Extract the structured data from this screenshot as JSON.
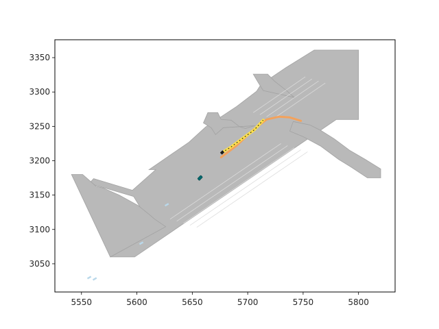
{
  "chart_data": {
    "type": "map",
    "title": "",
    "xlabel": "",
    "ylabel": "",
    "xlim": [
      5526,
      5833
    ],
    "ylim": [
      3009,
      3376
    ],
    "x_ticks": [
      5550,
      5600,
      5650,
      5700,
      5750,
      5800
    ],
    "y_ticks": [
      3050,
      3100,
      3150,
      3200,
      3250,
      3300,
      3350
    ],
    "x_tick_labels": [
      "5550",
      "5600",
      "5650",
      "5700",
      "5750",
      "5800"
    ],
    "y_tick_labels": [
      "3050",
      "3100",
      "3150",
      "3200",
      "3250",
      "3300",
      "3350"
    ],
    "grid": false,
    "colors": {
      "road": "#b9b9b9",
      "road_edge": "#a2a2a2",
      "lane_line": "#dcdcdc",
      "ego_path": "#ffe14a",
      "planned_path": "#f3a25c",
      "agent_vehicle": "#00696e",
      "pedestrian": "#b9d8ea"
    },
    "road_network": {
      "main_road": [
        [
          5576,
          3060
        ],
        [
          5598,
          3060
        ],
        [
          5780,
          3260
        ],
        [
          5800,
          3260
        ],
        [
          5800,
          3361
        ],
        [
          5760,
          3361
        ],
        [
          5734,
          3335
        ],
        [
          5712,
          3311
        ],
        [
          5708,
          3301
        ],
        [
          5690,
          3279
        ],
        [
          5662,
          3249
        ],
        [
          5647,
          3227
        ],
        [
          5611,
          3187
        ],
        [
          5617,
          3187
        ],
        [
          5596,
          3157
        ],
        [
          5561,
          3174
        ],
        [
          5557,
          3167
        ],
        [
          5597,
          3148
        ],
        [
          5608,
          3119
        ],
        [
          5565,
          3128
        ]
      ],
      "left_spur": [
        [
          5541,
          3180
        ],
        [
          5551,
          3180
        ],
        [
          5563,
          3163
        ],
        [
          5570,
          3160
        ],
        [
          5584,
          3150
        ],
        [
          5601,
          3135
        ],
        [
          5611,
          3122
        ],
        [
          5616,
          3115
        ],
        [
          5626,
          3104
        ],
        [
          5576,
          3060
        ]
      ],
      "upper_left_spur": [
        [
          5664,
          3270
        ],
        [
          5673,
          3270
        ],
        [
          5676,
          3260
        ],
        [
          5685,
          3259
        ],
        [
          5693,
          3249
        ],
        [
          5698,
          3247
        ],
        [
          5707,
          3251
        ],
        [
          5678,
          3248
        ],
        [
          5671,
          3238
        ],
        [
          5667,
          3248
        ],
        [
          5660,
          3255
        ]
      ],
      "top_spur": [
        [
          5705,
          3326
        ],
        [
          5718,
          3326
        ],
        [
          5724,
          3316
        ],
        [
          5735,
          3302
        ],
        [
          5742,
          3292
        ],
        [
          5714,
          3302
        ],
        [
          5709,
          3315
        ]
      ],
      "right_spur": [
        [
          5741,
          3257
        ],
        [
          5756,
          3252
        ],
        [
          5766,
          3244
        ],
        [
          5778,
          3232
        ],
        [
          5792,
          3215
        ],
        [
          5806,
          3202
        ],
        [
          5820,
          3188
        ],
        [
          5820,
          3175
        ],
        [
          5808,
          3175
        ],
        [
          5794,
          3190
        ],
        [
          5782,
          3202
        ],
        [
          5766,
          3221
        ],
        [
          5750,
          3235
        ],
        [
          5738,
          3243
        ]
      ]
    },
    "lane_lines": [
      [
        [
          5630,
          3115
        ],
        [
          5730,
          3225
        ]
      ],
      [
        [
          5636,
          3112
        ],
        [
          5736,
          3222
        ]
      ],
      [
        [
          5642,
          3109
        ],
        [
          5742,
          3219
        ]
      ],
      [
        [
          5648,
          3106
        ],
        [
          5748,
          3216
        ]
      ],
      [
        [
          5654,
          3103
        ],
        [
          5754,
          3213
        ]
      ],
      [
        [
          5705,
          3270
        ],
        [
          5752,
          3322
        ]
      ],
      [
        [
          5711,
          3267
        ],
        [
          5758,
          3319
        ]
      ],
      [
        [
          5717,
          3264
        ],
        [
          5764,
          3316
        ]
      ],
      [
        [
          5723,
          3261
        ],
        [
          5770,
          3313
        ]
      ]
    ],
    "ego_path": {
      "points": [
        [
          5677,
          3212
        ],
        [
          5685,
          3220
        ],
        [
          5695,
          3232
        ],
        [
          5706,
          3245
        ],
        [
          5714,
          3259
        ]
      ]
    },
    "planned_path": {
      "points": [
        [
          5676,
          3205
        ],
        [
          5690,
          3222
        ],
        [
          5705,
          3245
        ],
        [
          5717,
          3260
        ],
        [
          5728,
          3264
        ],
        [
          5738,
          3263
        ],
        [
          5748,
          3258
        ]
      ]
    },
    "agents": [
      {
        "kind": "vehicle",
        "x": 5657,
        "y": 3175
      },
      {
        "kind": "vehicle-marker",
        "x": 5677,
        "y": 3212
      },
      {
        "kind": "pedestrian",
        "x": 5557,
        "y": 3030
      },
      {
        "kind": "pedestrian",
        "x": 5562,
        "y": 3028
      },
      {
        "kind": "pedestrian",
        "x": 5604,
        "y": 3080
      },
      {
        "kind": "pedestrian",
        "x": 5627,
        "y": 3136
      }
    ]
  }
}
